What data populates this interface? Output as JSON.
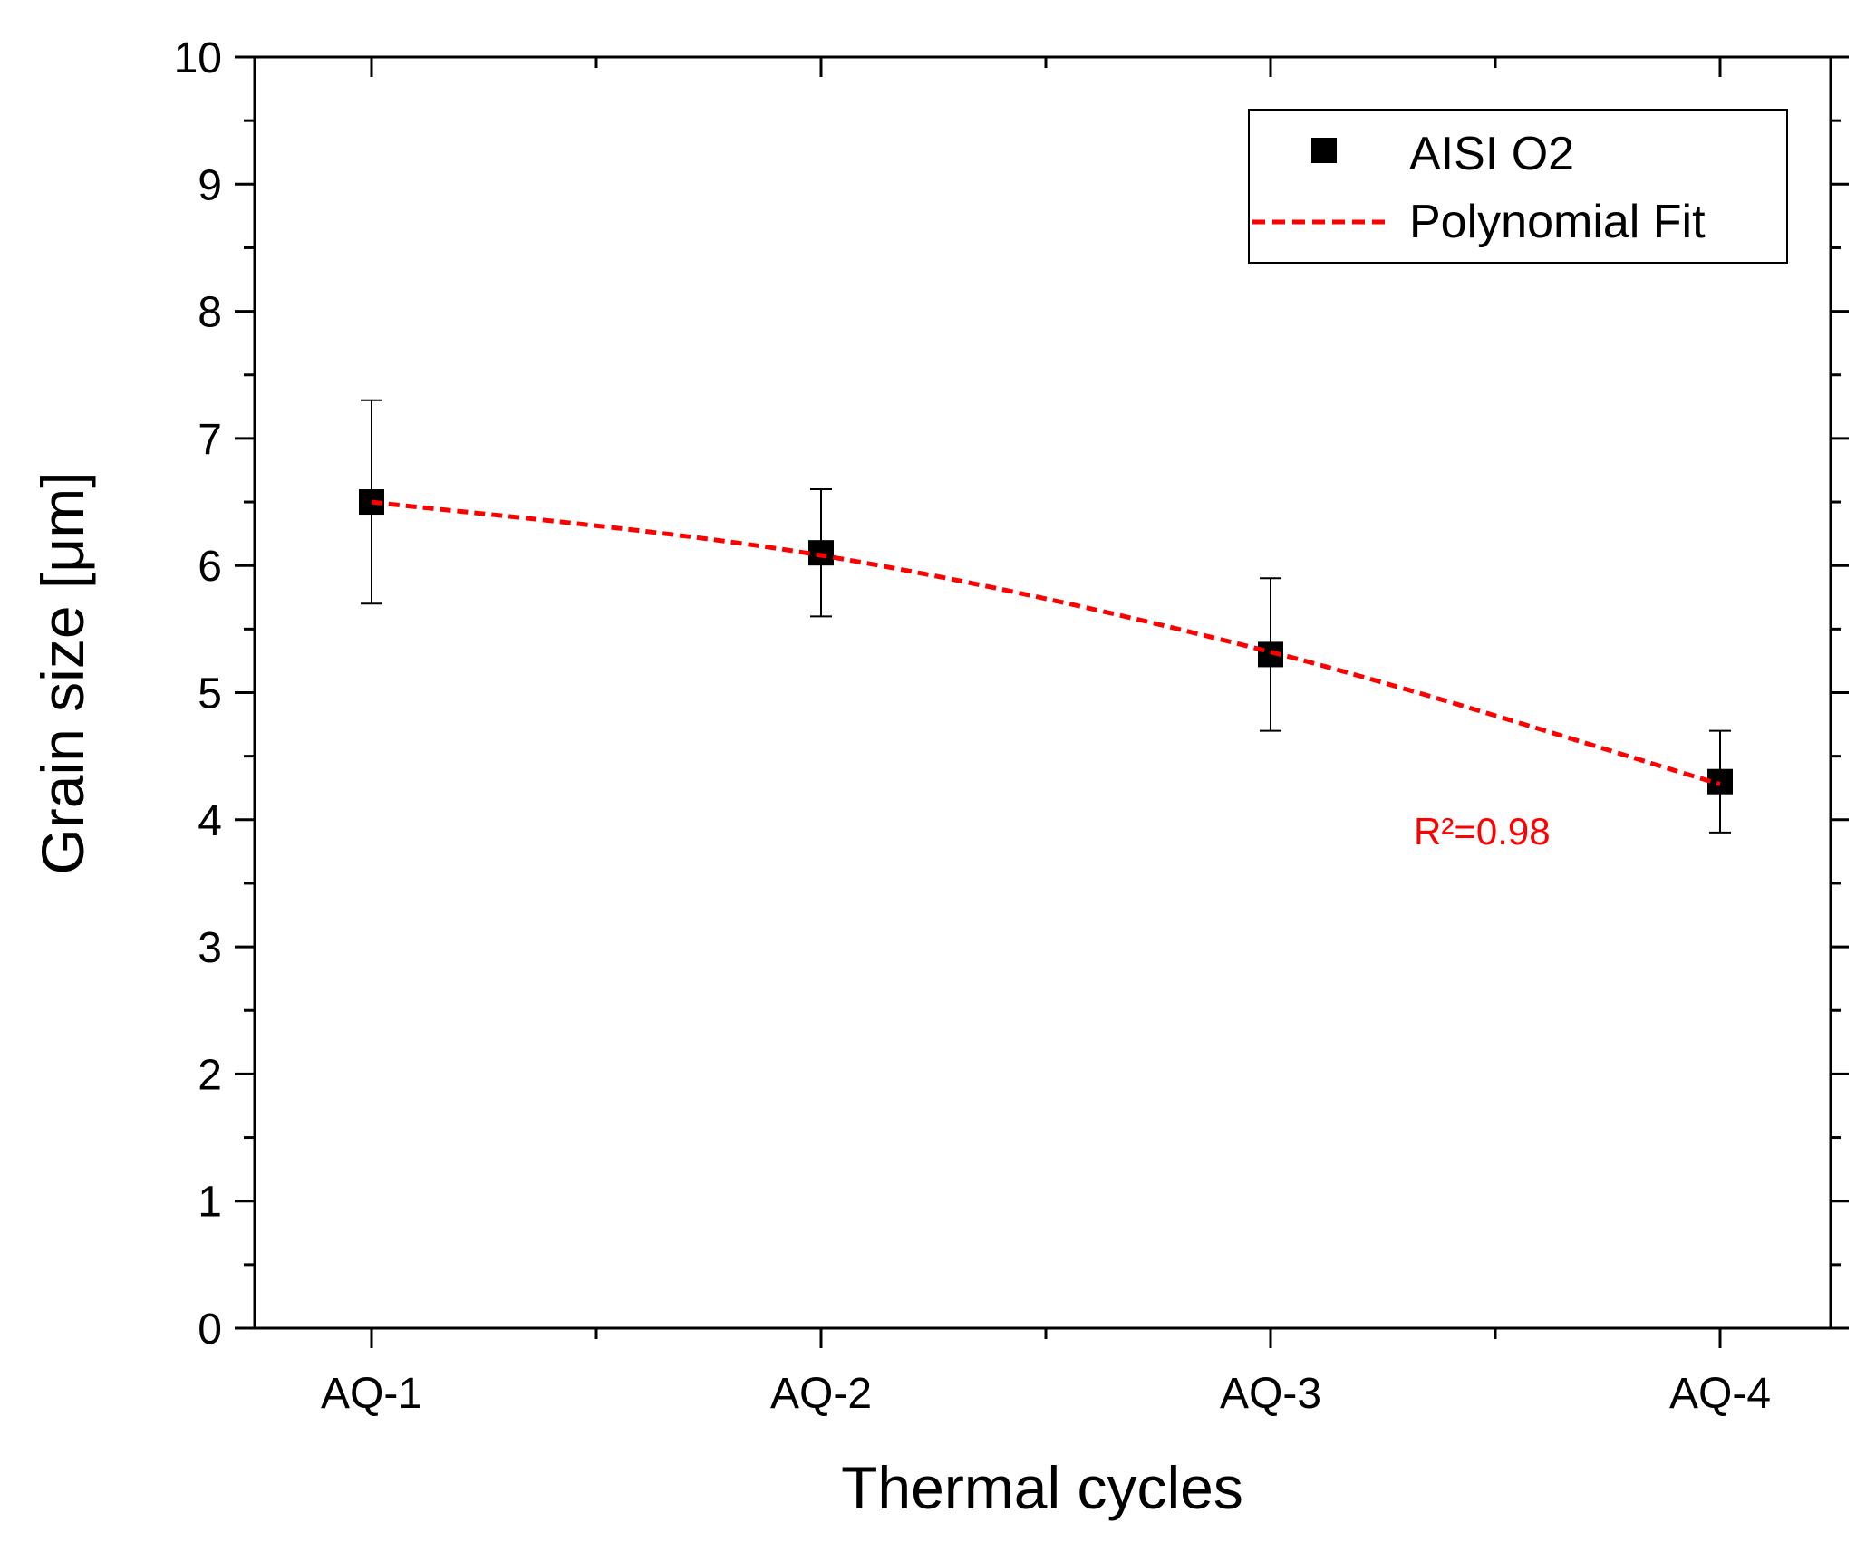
{
  "chart_data": {
    "type": "scatter",
    "xlabel": "Thermal cycles",
    "ylabel": "Grain size [μm]",
    "categories": [
      "AQ-1",
      "AQ-2",
      "AQ-3",
      "AQ-4"
    ],
    "ylim": [
      0,
      10
    ],
    "yticks": [
      "0",
      "1",
      "2",
      "3",
      "4",
      "5",
      "6",
      "7",
      "8",
      "9",
      "10"
    ],
    "grid": false,
    "legend_position": "top-right",
    "series": [
      {
        "name": "AISI O2",
        "marker": "square",
        "color": "#000000",
        "values": [
          6.5,
          6.1,
          5.3,
          4.3
        ],
        "errors": [
          0.8,
          0.5,
          0.6,
          0.4
        ]
      },
      {
        "name": "Polynomial Fit",
        "style": "dashed-line",
        "color": "#ff0000",
        "values": [
          6.5,
          6.08,
          5.32,
          4.28
        ]
      }
    ],
    "annotation": {
      "label": "R²=0.98",
      "color": "#ff0000"
    }
  }
}
